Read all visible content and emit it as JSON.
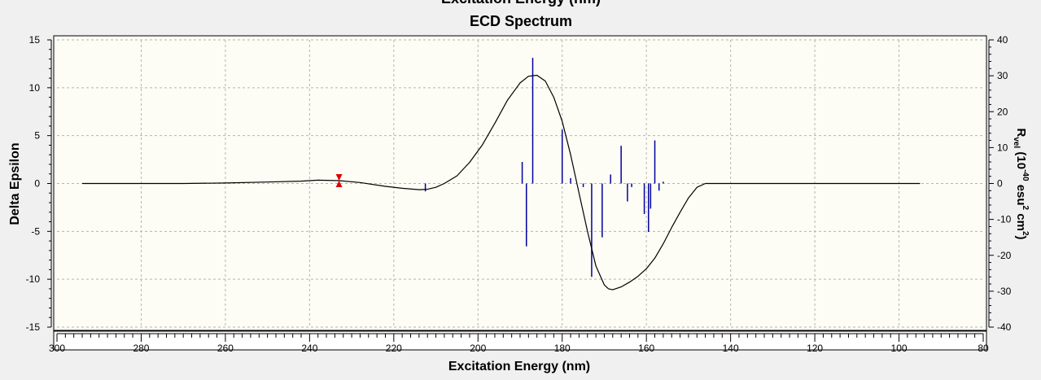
{
  "window": {
    "clipped_title": "Excitation Energy (nm)"
  },
  "chart_data": {
    "type": "line",
    "title": "ECD Spectrum",
    "xlabel": "Excitation Energy (nm)",
    "ylabel": "Delta Epsilon",
    "y2label": "Rvel (10-40 esu2 cm2)",
    "xlim": [
      300,
      80
    ],
    "ylim": [
      -15,
      15
    ],
    "y2lim": [
      -40,
      40
    ],
    "x_ticks": [
      300,
      280,
      260,
      240,
      220,
      200,
      180,
      160,
      140,
      120,
      100,
      80
    ],
    "y_ticks": [
      15,
      10,
      5,
      0,
      -5,
      -10,
      -15
    ],
    "y2_ticks": [
      40,
      30,
      20,
      10,
      0,
      -10,
      -20,
      -30,
      -40
    ],
    "grid": true,
    "background": "#fdfdf5",
    "curve_color": "#000000",
    "stick_color": "#0000a0",
    "marker_color": "#e00000",
    "series": [
      {
        "type": "line",
        "x": [
          294,
          280,
          270,
          260,
          250,
          242,
          238,
          233,
          228,
          222,
          218,
          214,
          212,
          210,
          208,
          205,
          202,
          199,
          196,
          193,
          190,
          188,
          186,
          184,
          182,
          180,
          178,
          176,
          174,
          172,
          170,
          169,
          168,
          166,
          164,
          162,
          160,
          158,
          156,
          154,
          152,
          150,
          148,
          146,
          140,
          130,
          120,
          110,
          100,
          95
        ],
        "y": [
          0,
          0,
          0,
          0.05,
          0.15,
          0.25,
          0.35,
          0.3,
          0.1,
          -0.3,
          -0.5,
          -0.65,
          -0.6,
          -0.4,
          0,
          0.8,
          2.2,
          4,
          6.3,
          8.7,
          10.5,
          11.2,
          11.3,
          10.7,
          9,
          6.5,
          3,
          -1,
          -5,
          -8.6,
          -10.6,
          -11,
          -11.1,
          -10.8,
          -10.3,
          -9.7,
          -8.9,
          -7.8,
          -6.3,
          -4.6,
          -3,
          -1.5,
          -0.4,
          0,
          0,
          0,
          0,
          0,
          0,
          0
        ]
      },
      {
        "type": "stick",
        "x": [
          212.5,
          189.5,
          188.5,
          187,
          180,
          178,
          175,
          173,
          170.5,
          168.5,
          166,
          164.5,
          163.5,
          160.5,
          159.5,
          159,
          158,
          157,
          156
        ],
        "y": [
          -2.2,
          6,
          -17.5,
          35,
          15,
          1.5,
          -1,
          -26,
          -15,
          2.5,
          10.5,
          -5,
          -1,
          -8.5,
          -13.5,
          -7,
          12,
          -2,
          0.5
        ]
      }
    ],
    "markers": [
      {
        "x": 233,
        "y": 0.3
      }
    ]
  }
}
